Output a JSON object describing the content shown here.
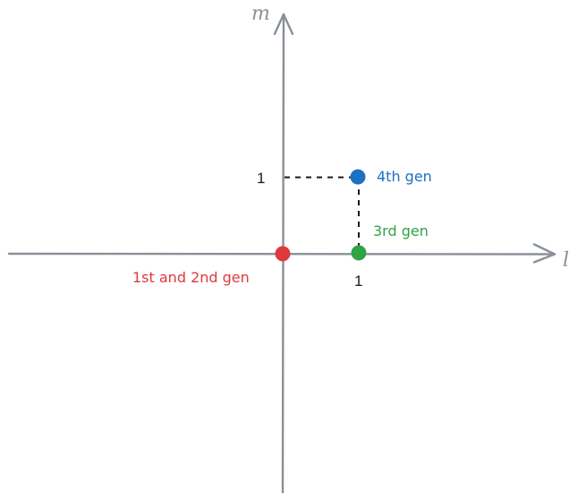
{
  "diagram": {
    "axes": {
      "x_label": "l",
      "y_label": "m",
      "color": "#8a8f98"
    },
    "ticks": {
      "x_tick": "1",
      "y_tick": "1"
    },
    "guide_color": "#1a1a1a",
    "points": [
      {
        "id": "first-second",
        "label": "1st and 2nd gen",
        "l": 0,
        "m": 0,
        "color": "#e0393b"
      },
      {
        "id": "third",
        "label": "3rd gen",
        "l": 1,
        "m": 0,
        "color": "#2fa345"
      },
      {
        "id": "fourth",
        "label": "4th gen",
        "l": 1,
        "m": 1,
        "color": "#1f6fc5"
      }
    ]
  }
}
